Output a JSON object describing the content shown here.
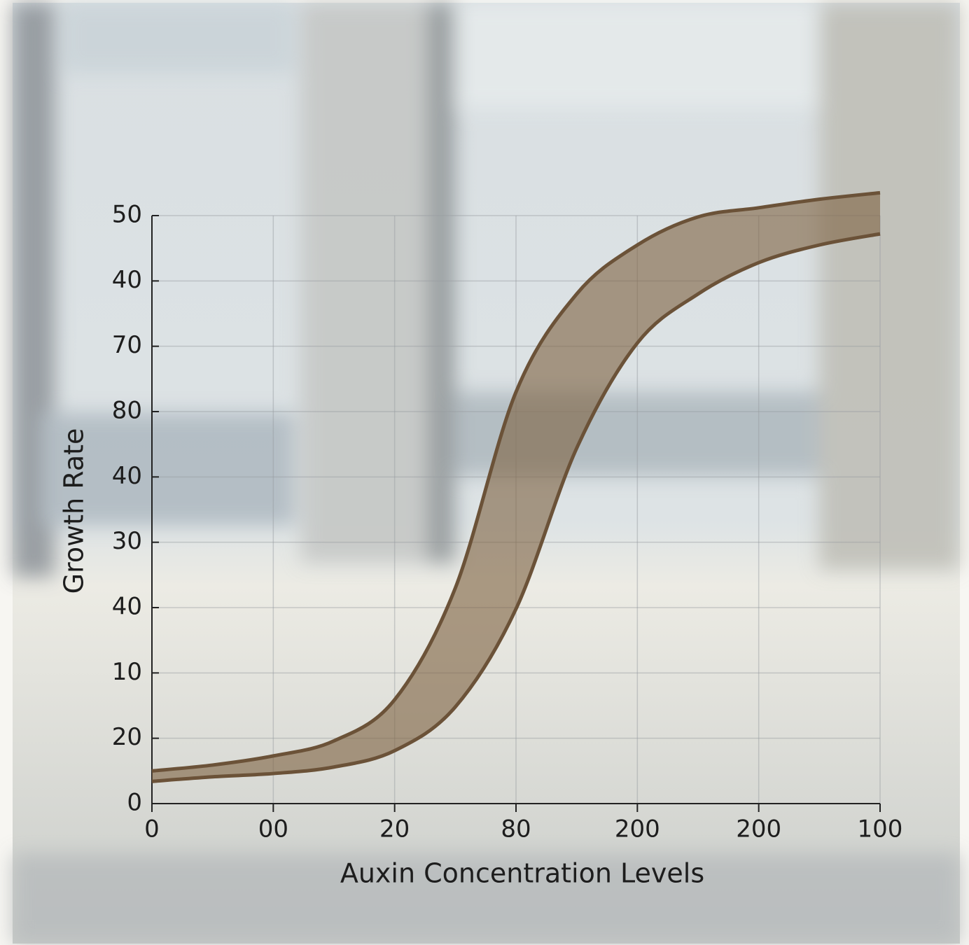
{
  "chart_data": {
    "type": "band",
    "x_label": "Auxin Concentration Levels",
    "y_label": "Growth Rate",
    "x": [
      0,
      0.5,
      1,
      1.5,
      2,
      2.5,
      3,
      3.5,
      4,
      4.5,
      5,
      5.5,
      6
    ],
    "series": [
      {
        "color": "#6b5238",
        "values": [
          0.5,
          0.59,
          0.73,
          0.96,
          1.59,
          3.3,
          6.3,
          7.8,
          8.55,
          8.98,
          9.12,
          9.25,
          9.35
        ]
      },
      {
        "color": "#6b5238",
        "values": [
          0.34,
          0.41,
          0.46,
          0.56,
          0.81,
          1.48,
          2.98,
          5.44,
          7.05,
          7.8,
          8.28,
          8.55,
          8.72
        ]
      }
    ],
    "fill": "rgba(125,96,64,0.6)",
    "xlim": [
      0,
      6
    ],
    "xticks": [
      0,
      {
        "value": 1,
        "label": "00"
      },
      {
        "value": 2,
        "label": "20"
      },
      {
        "value": 3,
        "label": "80"
      },
      {
        "value": 4,
        "label": "200"
      },
      {
        "value": 5,
        "label": "200"
      },
      {
        "value": 6,
        "label": "100"
      }
    ],
    "ylim": [
      0,
      9
    ],
    "yticks": [
      0,
      {
        "value": 1,
        "label": "20"
      },
      {
        "value": 2,
        "label": "10"
      },
      {
        "value": 3,
        "label": "40"
      },
      {
        "value": 4,
        "label": "30"
      },
      {
        "value": 5,
        "label": "40"
      },
      {
        "value": 6,
        "label": "80"
      },
      {
        "value": 7,
        "label": "70"
      },
      {
        "value": 8,
        "label": "40"
      },
      {
        "value": 9,
        "label": "50"
      }
    ],
    "grid": true
  }
}
